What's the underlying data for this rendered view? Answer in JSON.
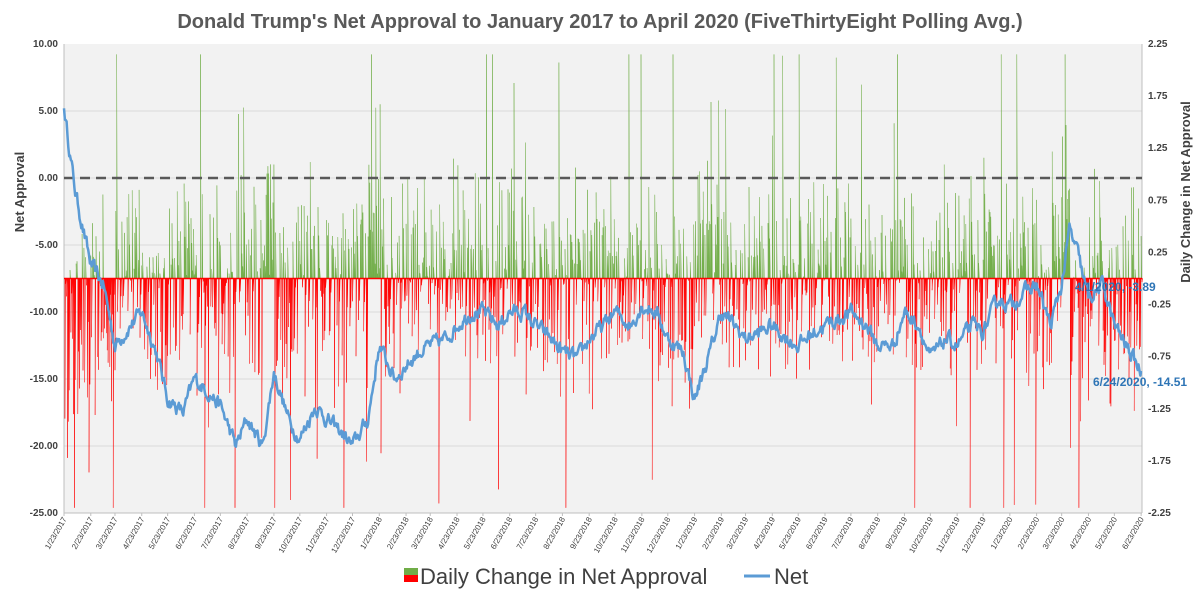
{
  "chart_data": {
    "type": "line",
    "title": "Donald Trump's Net Approval to January 2017 to April  2020 (FiveThirtyEight Polling Avg.)",
    "ylabel_left": "Net Approval",
    "ylabel_right": "Daily Change in Net Approval",
    "ylim_left": [
      -25,
      10
    ],
    "ylim_right": [
      -2.25,
      2.25
    ],
    "left_ticks": [
      "10.00",
      "5.00",
      "0.00",
      "-5.00",
      "-10.00",
      "-15.00",
      "-20.00",
      "-25.00"
    ],
    "right_ticks": [
      "2.25",
      "1.75",
      "1.25",
      "0.75",
      "0.25",
      "-0.25",
      "-0.75",
      "-1.25",
      "-1.75",
      "-2.25"
    ],
    "x_start": "1/23/2017",
    "x_end": "6/24/2020",
    "x_tick_labels": [
      "1/23/2017",
      "2/23/2017",
      "3/23/2017",
      "4/23/2017",
      "5/23/2017",
      "6/23/2017",
      "7/23/2017",
      "8/23/2017",
      "9/23/2017",
      "10/23/2017",
      "11/23/2017",
      "12/23/2017",
      "1/23/2018",
      "2/23/2018",
      "3/23/2018",
      "4/23/2018",
      "5/23/2018",
      "6/23/2018",
      "7/23/2018",
      "8/23/2018",
      "9/23/2018",
      "10/23/2018",
      "11/23/2018",
      "12/23/2018",
      "1/23/2019",
      "2/23/2019",
      "3/23/2019",
      "4/23/2019",
      "5/23/2019",
      "6/23/2019",
      "7/23/2019",
      "8/23/2019",
      "9/23/2019",
      "10/23/2019",
      "11/23/2019",
      "12/23/2019",
      "1/23/2020",
      "2/23/2020",
      "3/23/2020",
      "4/23/2020",
      "5/23/2020",
      "6/23/2020"
    ],
    "reference_line": 0,
    "grid": true,
    "legend_position": "bottom",
    "series": [
      {
        "name": "Net",
        "axis": "left",
        "color": "#5b9bd5",
        "x": [
          "1/23/2017",
          "2/5/2017",
          "2/23/2017",
          "3/10/2017",
          "3/23/2017",
          "4/10/2017",
          "4/23/2017",
          "5/10/2017",
          "5/23/2017",
          "6/10/2017",
          "6/23/2017",
          "7/10/2017",
          "7/23/2017",
          "8/10/2017",
          "8/23/2017",
          "9/10/2017",
          "9/23/2017",
          "10/10/2017",
          "10/23/2017",
          "11/10/2017",
          "11/23/2017",
          "12/10/2017",
          "12/23/2017",
          "1/10/2018",
          "1/23/2018",
          "2/10/2018",
          "2/23/2018",
          "3/10/2018",
          "3/23/2018",
          "4/10/2018",
          "4/23/2018",
          "5/10/2018",
          "5/23/2018",
          "6/10/2018",
          "6/23/2018",
          "7/10/2018",
          "7/23/2018",
          "8/10/2018",
          "8/23/2018",
          "9/10/2018",
          "9/23/2018",
          "10/10/2018",
          "10/23/2018",
          "11/10/2018",
          "11/23/2018",
          "12/10/2018",
          "12/23/2018",
          "1/10/2019",
          "1/23/2019",
          "2/10/2019",
          "2/23/2019",
          "3/10/2019",
          "3/23/2019",
          "4/10/2019",
          "4/23/2019",
          "5/10/2019",
          "5/23/2019",
          "6/10/2019",
          "6/23/2019",
          "7/10/2019",
          "7/23/2019",
          "8/10/2019",
          "8/23/2019",
          "9/10/2019",
          "9/23/2019",
          "10/10/2019",
          "10/23/2019",
          "11/10/2019",
          "11/23/2019",
          "12/10/2019",
          "12/23/2019",
          "1/10/2020",
          "1/23/2020",
          "2/10/2020",
          "2/23/2020",
          "3/10/2020",
          "3/23/2020",
          "4/1/2020",
          "4/10/2020",
          "4/23/2020",
          "5/10/2020",
          "5/23/2020",
          "6/10/2020",
          "6/24/2020"
        ],
        "values": [
          5.2,
          -1,
          -6.5,
          -8,
          -12.5,
          -11,
          -10,
          -13,
          -16.5,
          -17.5,
          -15,
          -16,
          -17,
          -20,
          -18,
          -20,
          -14.5,
          -18,
          -19.5,
          -17,
          -18,
          -19,
          -20,
          -18,
          -12.5,
          -15,
          -14,
          -13,
          -12.5,
          -12,
          -11,
          -10,
          -10,
          -11,
          -10,
          -10,
          -11,
          -12,
          -13,
          -13.5,
          -12,
          -11,
          -10,
          -11,
          -9.5,
          -10,
          -12,
          -13,
          -16.5,
          -13,
          -10,
          -11,
          -12,
          -11.5,
          -11,
          -12,
          -12.5,
          -11.5,
          -11,
          -10.5,
          -10,
          -11,
          -12.5,
          -12.5,
          -10,
          -11,
          -13.5,
          -12,
          -12.5,
          -11,
          -11.5,
          -9,
          -9.5,
          -8.5,
          -8,
          -11,
          -8,
          -3.89,
          -5.5,
          -9,
          -8,
          -11,
          -13,
          -14.51
        ]
      },
      {
        "name": "Daily Change in Net Approval",
        "axis": "right",
        "positive_color": "#70ad47",
        "negative_color": "#ff0000",
        "type": "area"
      }
    ],
    "annotations": [
      {
        "text": "4/1/2020, -3.89",
        "x": "4/1/2020",
        "y": -3.89
      },
      {
        "text": "6/24/2020, -14.51",
        "x": "6/24/2020",
        "y": -14.51
      }
    ],
    "legend": [
      {
        "label": "Daily Change in Net Approval"
      },
      {
        "label": "Net"
      }
    ]
  }
}
